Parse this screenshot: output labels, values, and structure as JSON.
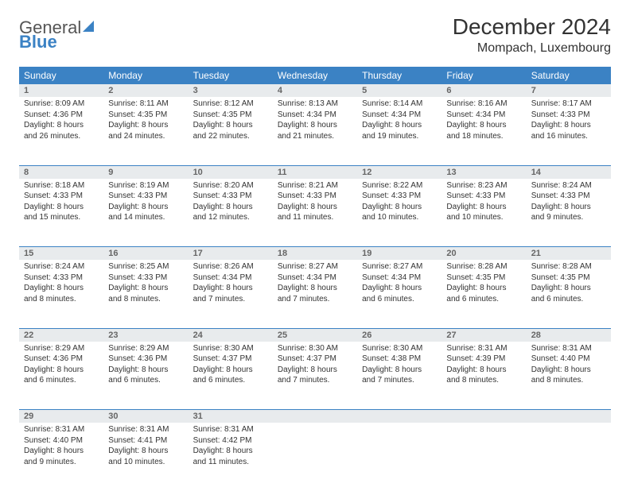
{
  "logo": {
    "general": "General",
    "blue": "Blue"
  },
  "title": "December 2024",
  "location": "Mompach, Luxembourg",
  "colors": {
    "header_bg": "#3b82c4",
    "header_text": "#ffffff",
    "daynum_bg": "#e8ebed",
    "border": "#3b82c4",
    "body_text": "#333333"
  },
  "weekdays": [
    "Sunday",
    "Monday",
    "Tuesday",
    "Wednesday",
    "Thursday",
    "Friday",
    "Saturday"
  ],
  "weeks": [
    [
      {
        "n": "1",
        "sr": "Sunrise: 8:09 AM",
        "ss": "Sunset: 4:36 PM",
        "dl": "Daylight: 8 hours and 26 minutes."
      },
      {
        "n": "2",
        "sr": "Sunrise: 8:11 AM",
        "ss": "Sunset: 4:35 PM",
        "dl": "Daylight: 8 hours and 24 minutes."
      },
      {
        "n": "3",
        "sr": "Sunrise: 8:12 AM",
        "ss": "Sunset: 4:35 PM",
        "dl": "Daylight: 8 hours and 22 minutes."
      },
      {
        "n": "4",
        "sr": "Sunrise: 8:13 AM",
        "ss": "Sunset: 4:34 PM",
        "dl": "Daylight: 8 hours and 21 minutes."
      },
      {
        "n": "5",
        "sr": "Sunrise: 8:14 AM",
        "ss": "Sunset: 4:34 PM",
        "dl": "Daylight: 8 hours and 19 minutes."
      },
      {
        "n": "6",
        "sr": "Sunrise: 8:16 AM",
        "ss": "Sunset: 4:34 PM",
        "dl": "Daylight: 8 hours and 18 minutes."
      },
      {
        "n": "7",
        "sr": "Sunrise: 8:17 AM",
        "ss": "Sunset: 4:33 PM",
        "dl": "Daylight: 8 hours and 16 minutes."
      }
    ],
    [
      {
        "n": "8",
        "sr": "Sunrise: 8:18 AM",
        "ss": "Sunset: 4:33 PM",
        "dl": "Daylight: 8 hours and 15 minutes."
      },
      {
        "n": "9",
        "sr": "Sunrise: 8:19 AM",
        "ss": "Sunset: 4:33 PM",
        "dl": "Daylight: 8 hours and 14 minutes."
      },
      {
        "n": "10",
        "sr": "Sunrise: 8:20 AM",
        "ss": "Sunset: 4:33 PM",
        "dl": "Daylight: 8 hours and 12 minutes."
      },
      {
        "n": "11",
        "sr": "Sunrise: 8:21 AM",
        "ss": "Sunset: 4:33 PM",
        "dl": "Daylight: 8 hours and 11 minutes."
      },
      {
        "n": "12",
        "sr": "Sunrise: 8:22 AM",
        "ss": "Sunset: 4:33 PM",
        "dl": "Daylight: 8 hours and 10 minutes."
      },
      {
        "n": "13",
        "sr": "Sunrise: 8:23 AM",
        "ss": "Sunset: 4:33 PM",
        "dl": "Daylight: 8 hours and 10 minutes."
      },
      {
        "n": "14",
        "sr": "Sunrise: 8:24 AM",
        "ss": "Sunset: 4:33 PM",
        "dl": "Daylight: 8 hours and 9 minutes."
      }
    ],
    [
      {
        "n": "15",
        "sr": "Sunrise: 8:24 AM",
        "ss": "Sunset: 4:33 PM",
        "dl": "Daylight: 8 hours and 8 minutes."
      },
      {
        "n": "16",
        "sr": "Sunrise: 8:25 AM",
        "ss": "Sunset: 4:33 PM",
        "dl": "Daylight: 8 hours and 8 minutes."
      },
      {
        "n": "17",
        "sr": "Sunrise: 8:26 AM",
        "ss": "Sunset: 4:34 PM",
        "dl": "Daylight: 8 hours and 7 minutes."
      },
      {
        "n": "18",
        "sr": "Sunrise: 8:27 AM",
        "ss": "Sunset: 4:34 PM",
        "dl": "Daylight: 8 hours and 7 minutes."
      },
      {
        "n": "19",
        "sr": "Sunrise: 8:27 AM",
        "ss": "Sunset: 4:34 PM",
        "dl": "Daylight: 8 hours and 6 minutes."
      },
      {
        "n": "20",
        "sr": "Sunrise: 8:28 AM",
        "ss": "Sunset: 4:35 PM",
        "dl": "Daylight: 8 hours and 6 minutes."
      },
      {
        "n": "21",
        "sr": "Sunrise: 8:28 AM",
        "ss": "Sunset: 4:35 PM",
        "dl": "Daylight: 8 hours and 6 minutes."
      }
    ],
    [
      {
        "n": "22",
        "sr": "Sunrise: 8:29 AM",
        "ss": "Sunset: 4:36 PM",
        "dl": "Daylight: 8 hours and 6 minutes."
      },
      {
        "n": "23",
        "sr": "Sunrise: 8:29 AM",
        "ss": "Sunset: 4:36 PM",
        "dl": "Daylight: 8 hours and 6 minutes."
      },
      {
        "n": "24",
        "sr": "Sunrise: 8:30 AM",
        "ss": "Sunset: 4:37 PM",
        "dl": "Daylight: 8 hours and 6 minutes."
      },
      {
        "n": "25",
        "sr": "Sunrise: 8:30 AM",
        "ss": "Sunset: 4:37 PM",
        "dl": "Daylight: 8 hours and 7 minutes."
      },
      {
        "n": "26",
        "sr": "Sunrise: 8:30 AM",
        "ss": "Sunset: 4:38 PM",
        "dl": "Daylight: 8 hours and 7 minutes."
      },
      {
        "n": "27",
        "sr": "Sunrise: 8:31 AM",
        "ss": "Sunset: 4:39 PM",
        "dl": "Daylight: 8 hours and 8 minutes."
      },
      {
        "n": "28",
        "sr": "Sunrise: 8:31 AM",
        "ss": "Sunset: 4:40 PM",
        "dl": "Daylight: 8 hours and 8 minutes."
      }
    ],
    [
      {
        "n": "29",
        "sr": "Sunrise: 8:31 AM",
        "ss": "Sunset: 4:40 PM",
        "dl": "Daylight: 8 hours and 9 minutes."
      },
      {
        "n": "30",
        "sr": "Sunrise: 8:31 AM",
        "ss": "Sunset: 4:41 PM",
        "dl": "Daylight: 8 hours and 10 minutes."
      },
      {
        "n": "31",
        "sr": "Sunrise: 8:31 AM",
        "ss": "Sunset: 4:42 PM",
        "dl": "Daylight: 8 hours and 11 minutes."
      },
      null,
      null,
      null,
      null
    ]
  ]
}
